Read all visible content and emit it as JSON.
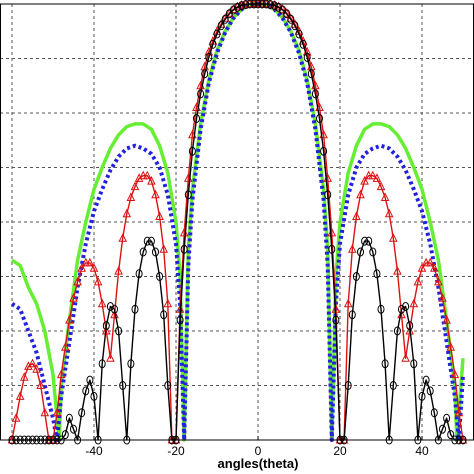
{
  "chart_data": {
    "type": "line",
    "title": "",
    "xlabel": "angles(theta)",
    "ylabel": "",
    "xlim": [
      -60,
      50
    ],
    "ylim": [
      -80,
      0
    ],
    "x_ticks": [
      -40,
      -20,
      0,
      20,
      40
    ],
    "x_tick_labels": [
      "-40",
      "-20",
      "0",
      "20",
      "40"
    ],
    "grid": true,
    "series": [
      {
        "key": "green",
        "color": "#66ee33",
        "style": "solid",
        "marker": "none",
        "x": [
          -60,
          -58,
          -56,
          -54,
          -52,
          -50,
          -48.5,
          -48,
          -46,
          -44,
          -42,
          -40,
          -38,
          -36,
          -34,
          -32,
          -30,
          -28,
          -26,
          -24,
          -22,
          -20,
          -19,
          -18,
          -17,
          -16,
          -14,
          -12,
          -10,
          -8,
          -6,
          -4,
          -2,
          0,
          2,
          4,
          6,
          8,
          10,
          12,
          14,
          16,
          17,
          18,
          19,
          20,
          22,
          24,
          26,
          28,
          30,
          32,
          34,
          36,
          38,
          40,
          42,
          44,
          46,
          48,
          48.5,
          50
        ],
        "y": [
          -47,
          -48,
          -52,
          -55,
          -60,
          -68,
          -80,
          -70,
          -58,
          -47,
          -40,
          -34,
          -30,
          -26.5,
          -24,
          -22.5,
          -22,
          -22,
          -23,
          -26,
          -31,
          -40,
          -50,
          -80,
          -45,
          -34,
          -22,
          -14,
          -8.5,
          -5,
          -2.5,
          -1,
          -0.2,
          0,
          -0.2,
          -1,
          -2.5,
          -5,
          -8.5,
          -14,
          -22,
          -34,
          -45,
          -80,
          -50,
          -40,
          -31,
          -26,
          -23,
          -22,
          -22,
          -22.5,
          -24,
          -26.5,
          -30,
          -34,
          -40,
          -47,
          -58,
          -70,
          -80,
          -65
        ]
      },
      {
        "key": "blue",
        "color": "#2222dd",
        "style": "dotted",
        "marker": "none",
        "x": [
          -60,
          -58,
          -56,
          -54,
          -52,
          -50,
          -49,
          -48,
          -46,
          -44,
          -42,
          -40,
          -38,
          -36,
          -34,
          -32,
          -30,
          -28,
          -26,
          -24,
          -22,
          -20,
          -19,
          -18,
          -17,
          -16,
          -14,
          -12,
          -10,
          -8,
          -6,
          -4,
          -2,
          0,
          2,
          4,
          6,
          8,
          10,
          12,
          14,
          16,
          17,
          18,
          19,
          20,
          22,
          24,
          26,
          28,
          30,
          32,
          34,
          36,
          38,
          40,
          42,
          44,
          46,
          48,
          49,
          50
        ],
        "y": [
          -55,
          -56,
          -60,
          -64,
          -70,
          -76,
          -80,
          -72,
          -62,
          -52,
          -44,
          -38,
          -34,
          -30.5,
          -28,
          -26.5,
          -26,
          -26.5,
          -27.5,
          -30,
          -35,
          -44,
          -55,
          -80,
          -48,
          -36,
          -23,
          -14.5,
          -9,
          -5.2,
          -2.6,
          -1,
          -0.2,
          0,
          -0.2,
          -1,
          -2.6,
          -5.2,
          -9,
          -14.5,
          -23,
          -36,
          -48,
          -80,
          -55,
          -44,
          -35,
          -30,
          -27.5,
          -26.5,
          -26,
          -26.5,
          -28,
          -30.5,
          -34,
          -38,
          -44,
          -52,
          -62,
          -72,
          -80,
          -68
        ]
      },
      {
        "key": "red",
        "color": "#dd1111",
        "style": "solid",
        "marker": "triangle",
        "x": [
          -60,
          -59,
          -58,
          -57,
          -56,
          -55,
          -54,
          -53,
          -52,
          -51,
          -50,
          -49,
          -48,
          -47,
          -46,
          -45,
          -44,
          -43,
          -42,
          -41,
          -40,
          -39,
          -38,
          -37,
          -36,
          -35,
          -34,
          -33,
          -32,
          -31,
          -30,
          -29,
          -28,
          -27,
          -26,
          -25,
          -24,
          -23,
          -22,
          -21,
          -20,
          -19,
          -18,
          -17,
          -16,
          -15,
          -14,
          -13,
          -12,
          -11,
          -10,
          -9,
          -8,
          -7,
          -6,
          -5,
          -4,
          -3,
          -2,
          -1,
          0,
          1,
          2,
          3,
          4,
          5,
          6,
          7,
          8,
          9,
          10,
          11,
          12,
          13,
          14,
          15,
          16,
          17,
          18,
          19,
          20,
          21,
          22,
          23,
          24,
          25,
          26,
          27,
          28,
          29,
          30,
          31,
          32,
          33,
          34,
          35,
          36,
          37,
          38,
          39,
          40,
          41,
          42,
          43,
          44,
          45,
          46,
          47,
          48,
          49,
          50
        ],
        "y": [
          -80,
          -76,
          -72,
          -68.5,
          -66.5,
          -66,
          -67,
          -70,
          -75,
          -80,
          -80,
          -75,
          -68,
          -63,
          -58,
          -54,
          -51,
          -48.5,
          -47.5,
          -47.5,
          -48.5,
          -51,
          -55,
          -60,
          -65,
          -57,
          -49,
          -43,
          -38.5,
          -35.5,
          -33.5,
          -32,
          -31.5,
          -31.5,
          -32.5,
          -35,
          -39,
          -45,
          -55,
          -80,
          -80,
          -56,
          -42,
          -32,
          -24,
          -19,
          -15,
          -11.5,
          -8.8,
          -6.8,
          -5,
          -3.7,
          -2.6,
          -1.7,
          -1,
          -0.5,
          -0.2,
          -0.05,
          0,
          0,
          0,
          0,
          0,
          -0.05,
          -0.2,
          -0.5,
          -1,
          -1.7,
          -2.6,
          -3.7,
          -5,
          -6.8,
          -8.8,
          -11.5,
          -15,
          -19,
          -24,
          -32,
          -42,
          -56,
          -80,
          -80,
          -55,
          -45,
          -39,
          -35,
          -32.5,
          -31.5,
          -31.5,
          -32,
          -33.5,
          -35.5,
          -38.5,
          -43,
          -49,
          -57,
          -65,
          -60,
          -55,
          -51,
          -48.5,
          -47.5,
          -47.5,
          -48.5,
          -51,
          -54,
          -58,
          -63,
          -68,
          -75,
          -80
        ]
      },
      {
        "key": "black",
        "color": "#000000",
        "style": "solid",
        "marker": "circle",
        "x": [
          -60,
          -59,
          -58,
          -57,
          -56,
          -55,
          -54,
          -53,
          -52,
          -51,
          -50,
          -49,
          -48,
          -47,
          -46,
          -45,
          -44,
          -43,
          -42,
          -41,
          -40,
          -39,
          -38,
          -37,
          -36,
          -35,
          -34,
          -33,
          -32,
          -31,
          -30,
          -29,
          -28,
          -27,
          -26,
          -25,
          -24,
          -23,
          -22,
          -21,
          -20,
          -19,
          -18,
          -17,
          -16,
          -15,
          -14,
          -13,
          -12,
          -11,
          -10,
          -9,
          -8,
          -7,
          -6,
          -5,
          -4,
          -3,
          -2,
          -1,
          0,
          1,
          2,
          3,
          4,
          5,
          6,
          7,
          8,
          9,
          10,
          11,
          12,
          13,
          14,
          15,
          16,
          17,
          18,
          19,
          20,
          21,
          22,
          23,
          24,
          25,
          26,
          27,
          28,
          29,
          30,
          31,
          32,
          33,
          34,
          35,
          36,
          37,
          38,
          39,
          40,
          41,
          42,
          43,
          44,
          45,
          46,
          47,
          48,
          49,
          50
        ],
        "y": [
          -80,
          -80,
          -80,
          -80,
          -80,
          -80,
          -80,
          -80,
          -80,
          -80,
          -80,
          -80,
          -80,
          -79,
          -76,
          -78,
          -80,
          -75,
          -71,
          -69,
          -72,
          -80,
          -66,
          -59,
          -55.5,
          -56,
          -60,
          -70,
          -80,
          -66,
          -56,
          -49.5,
          -45.5,
          -43.5,
          -43.5,
          -45.5,
          -50,
          -57,
          -70,
          -80,
          -80,
          -58,
          -45,
          -35,
          -27,
          -21,
          -16.5,
          -12.8,
          -9.8,
          -7.4,
          -5.5,
          -4,
          -2.8,
          -1.8,
          -1.1,
          -0.6,
          -0.3,
          -0.1,
          0,
          0,
          0,
          0,
          0,
          -0.1,
          -0.3,
          -0.6,
          -1.1,
          -1.8,
          -2.8,
          -4,
          -5.5,
          -7.4,
          -9.8,
          -12.8,
          -16.5,
          -21,
          -27,
          -35,
          -45,
          -58,
          -80,
          -80,
          -70,
          -57,
          -50,
          -45.5,
          -43.5,
          -43.5,
          -45.5,
          -49.5,
          -56,
          -66,
          -80,
          -70,
          -60,
          -56,
          -55.5,
          -59,
          -66,
          -80,
          -72,
          -69,
          -71,
          -75,
          -80,
          -78,
          -76,
          -79,
          -80,
          -80,
          -80
        ]
      }
    ]
  }
}
